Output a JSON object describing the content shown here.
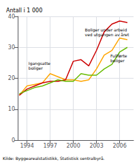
{
  "chart_data": {
    "type": "line",
    "ylabel": "Antall i 1 000",
    "source": "Kilde: Byggearealstatistikk, Statistisk sentralbyrå.",
    "x": [
      1993,
      1994,
      1995,
      1996,
      1997,
      1998,
      1999,
      2000,
      2001,
      2002,
      2003,
      2004,
      2005,
      2006,
      2007
    ],
    "series": [
      {
        "name": "Igangsatte\nboliger",
        "color": "#FFA500",
        "values": [
          14.5,
          17.5,
          18.0,
          18.5,
          21.5,
          20.5,
          19.5,
          19.5,
          19.0,
          19.5,
          23.0,
          27.5,
          29.0,
          33.0,
          32.5
        ]
      },
      {
        "name": "Boliger under arbeid\nved utgangen av året",
        "color": "#CC0000",
        "values": [
          14.5,
          16.5,
          17.5,
          18.5,
          19.0,
          19.0,
          19.5,
          25.5,
          26.0,
          24.0,
          29.0,
          35.0,
          37.5,
          38.5,
          38.0
        ]
      },
      {
        "name": "Fullførte\nboliger",
        "color": "#66BB00",
        "values": [
          15.0,
          16.0,
          17.0,
          17.5,
          18.5,
          19.5,
          19.0,
          19.0,
          21.5,
          21.0,
          21.0,
          23.0,
          24.5,
          28.5,
          30.0
        ]
      }
    ],
    "annotations": [
      {
        "text": "Igangsatte\nboliger",
        "x": 1994.2,
        "y": 22.5
      },
      {
        "text": "Boliger under arbeid\nved utgangen av året",
        "x": 2001.5,
        "y": 36.5
      },
      {
        "text": "Fullførte\nboliger",
        "x": 2004.8,
        "y": 25.0
      }
    ],
    "xlim": [
      1992.8,
      2007.8
    ],
    "xticks": [
      1994,
      1997,
      2000,
      2003,
      2006
    ],
    "ylim": [
      0,
      40
    ],
    "yticks": [
      0,
      10,
      20,
      30,
      40
    ],
    "grid": true
  }
}
